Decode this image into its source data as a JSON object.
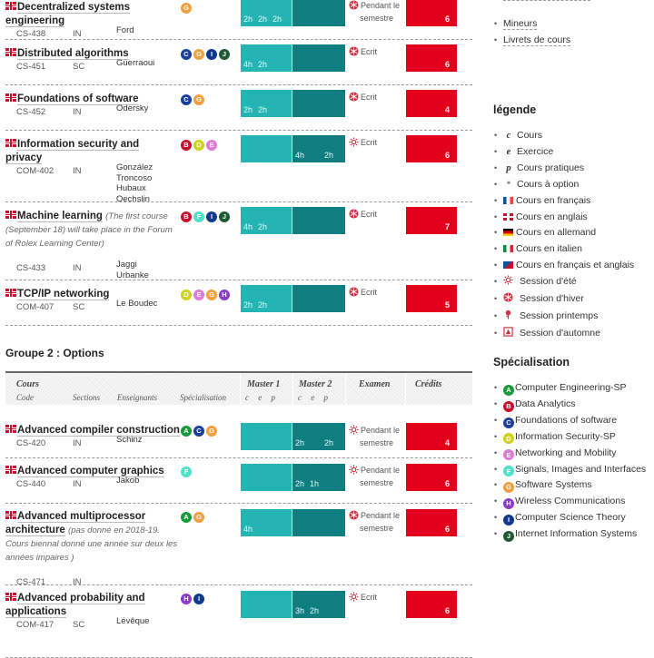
{
  "colors": {
    "master1": "#24b4b4",
    "master2": "#0e7e80",
    "credits": "#e2001a",
    "session": "#d03040"
  },
  "specializations": {
    "A": {
      "label": "Computer Engineering-SP",
      "color": "#1a9a3a"
    },
    "B": {
      "label": "Data Analytics",
      "color": "#c8102e"
    },
    "C": {
      "label": "Foundations of software",
      "color": "#1c3f9c"
    },
    "D": {
      "label": "Information Security-SP",
      "color": "#cfd21a"
    },
    "E": {
      "label": "Networking and Mobility",
      "color": "#e07ad8"
    },
    "F": {
      "label": "Signals, Images and Interfaces",
      "color": "#4fe0c8"
    },
    "G": {
      "label": "Software Systems",
      "color": "#f0a040"
    },
    "H": {
      "label": "Wireless Communications",
      "color": "#8a3cc8"
    },
    "I": {
      "label": "Computer Science Theory",
      "color": "#0d3a8c"
    },
    "J": {
      "label": "Internet Information Systems",
      "color": "#1e5a32"
    }
  },
  "group1_courses": [
    {
      "name": "Decentralized systems engineering",
      "note": "",
      "code": "CS-438",
      "section": "IN",
      "teachers": [
        "Ford"
      ],
      "spec": [
        "G"
      ],
      "m1": [
        "2h",
        "2h",
        "2h"
      ],
      "m2": [],
      "exam_session": "winter",
      "exam": [
        "Pendant le",
        "semestre"
      ],
      "credits": "6"
    },
    {
      "name": "Distributed algorithms",
      "note": "",
      "code": "CS-451",
      "section": "SC",
      "teachers": [
        "Guerraoui"
      ],
      "spec": [
        "C",
        "G",
        "I",
        "J"
      ],
      "m1": [
        "4h",
        "2h"
      ],
      "m2": [],
      "exam_session": "winter",
      "exam": [
        "Ecrit"
      ],
      "credits": "6"
    },
    {
      "name": "Foundations of software",
      "note": "",
      "code": "CS-452",
      "section": "IN",
      "teachers": [
        "Odersky"
      ],
      "spec": [
        "C",
        "G"
      ],
      "m1": [
        "2h",
        "2h"
      ],
      "m2": [],
      "exam_session": "winter",
      "exam": [
        "Ecrit"
      ],
      "credits": "4"
    },
    {
      "name": "Information security and privacy",
      "note": "",
      "code": "COM-402",
      "section": "IN",
      "teachers": [
        "González",
        "Troncoso",
        "Hubaux",
        "Oechslin"
      ],
      "spec": [
        "B",
        "D",
        "E"
      ],
      "m1": [],
      "m2": [
        "4h",
        "2h"
      ],
      "exam_session": "summer",
      "exam": [
        "Ecrit"
      ],
      "credits": "6"
    },
    {
      "name": "Machine learning",
      "note": "(The first course (September 18) will take place in the Forum of Rolex Learning Center)",
      "code": "CS-433",
      "section": "IN",
      "teachers": [
        "Jaggi",
        "Urbanke"
      ],
      "spec": [
        "B",
        "F",
        "I",
        "J"
      ],
      "m1": [
        "4h",
        "2h"
      ],
      "m2": [],
      "exam_session": "winter",
      "exam": [
        "Ecrit"
      ],
      "credits": "7"
    },
    {
      "name": "TCP/IP networking",
      "note": "",
      "code": "COM-407",
      "section": "SC",
      "teachers": [
        "Le Boudec"
      ],
      "spec": [
        "D",
        "E",
        "G",
        "H"
      ],
      "m1": [
        "2h",
        "2h"
      ],
      "m2": [],
      "exam_session": "winter",
      "exam": [
        "Ecrit"
      ],
      "credits": "5"
    }
  ],
  "group2": {
    "title": "Groupe 2 : Options",
    "header": {
      "cours": "Cours",
      "code": "Code",
      "sections": "Sections",
      "enseignants": "Enseignants",
      "specialisation": "Spécialisation",
      "master1": "Master 1",
      "master2": "Master 2",
      "examen": "Examen",
      "credits": "Crédits",
      "cep": [
        "c",
        "e",
        "p"
      ]
    },
    "courses": [
      {
        "name": "Advanced compiler construction",
        "note": "",
        "code": "CS-420",
        "section": "IN",
        "teachers": [
          "Schinz"
        ],
        "spec": [
          "A",
          "C",
          "G"
        ],
        "m1": [],
        "m2": [
          "2h",
          "2h"
        ],
        "exam_session": "summer",
        "exam": [
          "Pendant le",
          "semestre"
        ],
        "credits": "4"
      },
      {
        "name": "Advanced computer graphics",
        "note": "",
        "code": "CS-440",
        "section": "IN",
        "teachers": [
          "Jakob"
        ],
        "spec": [
          "F"
        ],
        "m1": [],
        "m2": [
          "2h",
          "1h"
        ],
        "exam_session": "summer",
        "exam": [
          "Pendant le",
          "semestre"
        ],
        "credits": "6"
      },
      {
        "name": "Advanced multiprocessor architecture",
        "note": "(pas donné en 2018-19. Cours biennal donné une année sur deux les années impaires )",
        "code": "CS-471",
        "section": "IN",
        "teachers": [],
        "spec": [
          "A",
          "G"
        ],
        "m1": [
          "4h"
        ],
        "m2": [],
        "exam_session": "winter",
        "exam": [
          "Pendant le",
          "semestre"
        ],
        "credits": "6"
      },
      {
        "name": "Advanced probability and applications",
        "note": "",
        "code": "COM-417",
        "section": "SC",
        "teachers": [
          "Lévêque"
        ],
        "spec": [
          "H",
          "I"
        ],
        "m1": [],
        "m2": [
          "3h",
          "2h"
        ],
        "exam_session": "summer",
        "exam": [
          "Ecrit"
        ],
        "credits": "6"
      }
    ]
  },
  "sidebar": {
    "links": [
      "Mineurs",
      "Livrets de cours"
    ],
    "legend_title": "légende",
    "legend": [
      {
        "icon": "c",
        "label": "Cours"
      },
      {
        "icon": "e",
        "label": "Exercice"
      },
      {
        "icon": "p",
        "label": "Cours pratiques"
      },
      {
        "icon": "*",
        "label": "Cours à option"
      },
      {
        "icon": "flag-fr",
        "label": "Cours en français"
      },
      {
        "icon": "flag-uk",
        "label": "Cours en anglais"
      },
      {
        "icon": "flag-de",
        "label": "Cours en allemand"
      },
      {
        "icon": "flag-it",
        "label": "Cours en italien"
      },
      {
        "icon": "flag-fr-uk",
        "label": "Cours en français et anglais"
      },
      {
        "icon": "session-summer",
        "label": "Session d'été"
      },
      {
        "icon": "session-winter",
        "label": "Session d'hiver"
      },
      {
        "icon": "session-spring",
        "label": "Session printemps"
      },
      {
        "icon": "session-autumn",
        "label": "Session d'automne"
      }
    ],
    "spec_title": "Spécialisation",
    "spec_order": [
      "A",
      "B",
      "C",
      "D",
      "E",
      "F",
      "G",
      "H",
      "I",
      "J"
    ]
  }
}
